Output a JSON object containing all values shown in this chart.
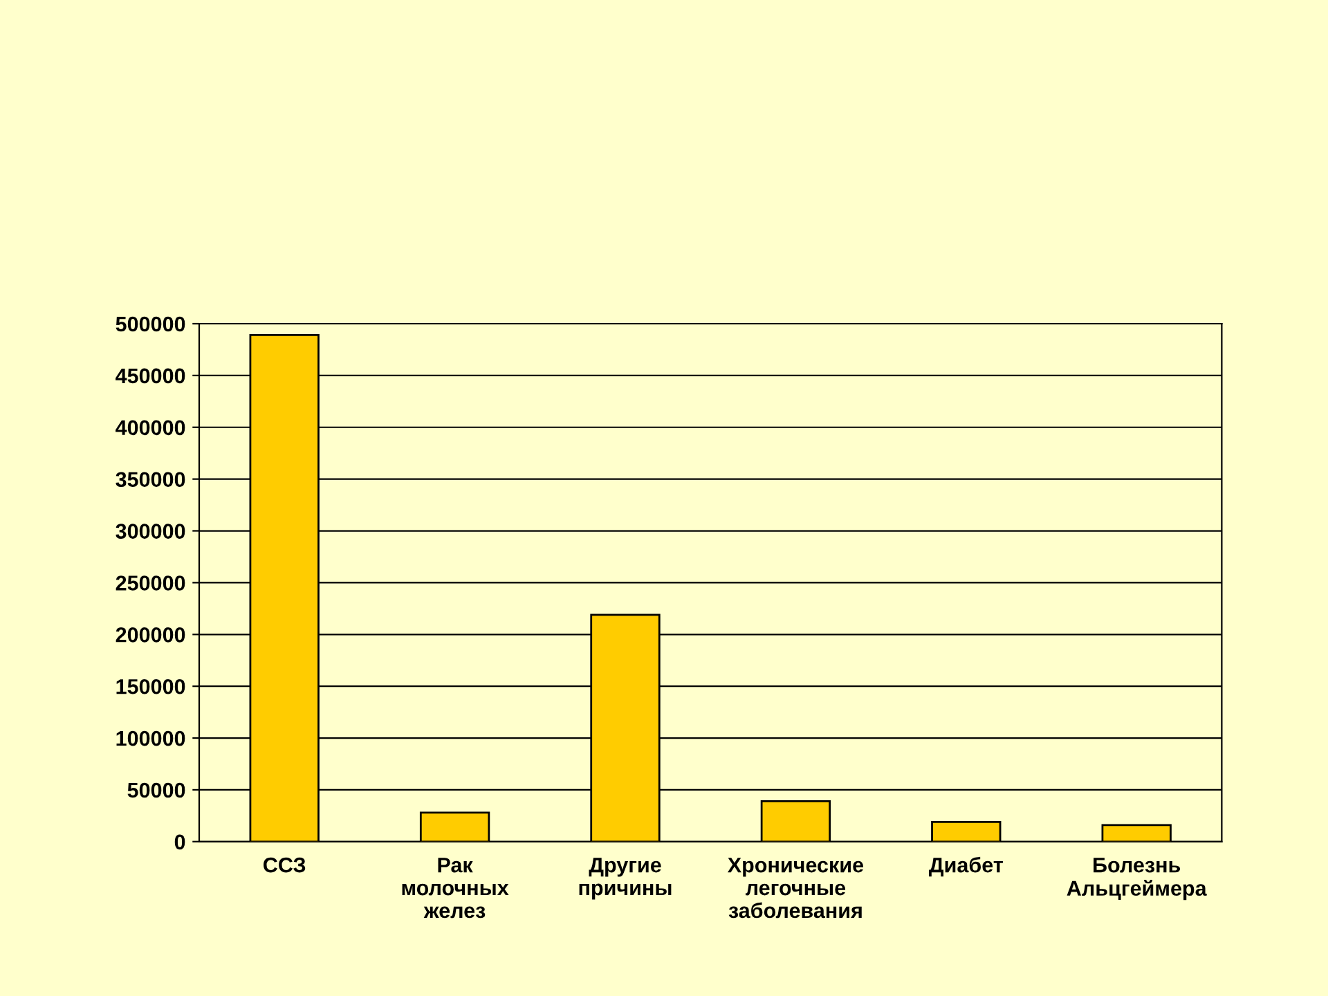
{
  "chart_data": {
    "type": "bar",
    "categories": [
      "ССЗ",
      "Рак\nмолочных\nжелез",
      "Другие\nпричины",
      "Хронические\nлегочные\nзаболевания",
      "Диабет",
      "Болезнь\nАльцгеймера"
    ],
    "values": [
      489000,
      28000,
      219000,
      39000,
      19000,
      16000
    ],
    "color": "#ffcc00",
    "ylim": [
      0,
      500000
    ],
    "yticks": [
      0,
      50000,
      100000,
      150000,
      200000,
      250000,
      300000,
      350000,
      400000,
      450000,
      500000
    ],
    "grid": "y"
  }
}
